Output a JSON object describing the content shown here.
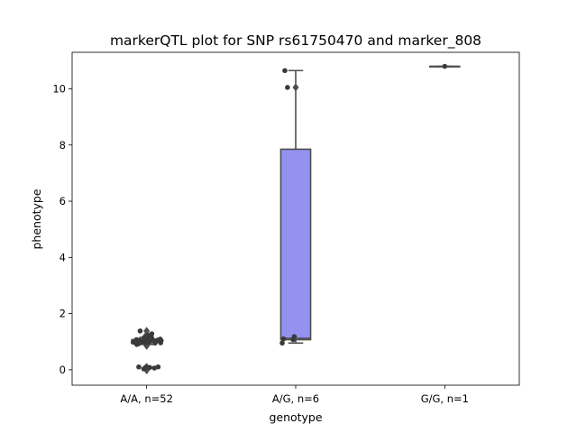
{
  "chart_data": {
    "type": "box",
    "title": "markerQTL plot for SNP rs61750470 and marker_808",
    "xlabel": "genotype",
    "ylabel": "phenotype",
    "categories": [
      "A/A, n=52",
      "A/G, n=6",
      "G/G, n=1"
    ],
    "ylim": [
      -0.55,
      11.3
    ],
    "yticks": [
      0,
      2,
      4,
      6,
      8,
      10
    ],
    "grid": false,
    "boxes": [
      {
        "category": "A/A, n=52",
        "q1": 0.97,
        "median": 1.02,
        "q3": 1.07,
        "whisker_low": 0.9,
        "whisker_high": 1.15,
        "fill": "#9392f1"
      },
      {
        "category": "A/G, n=6",
        "q1": 1.07,
        "median": 1.12,
        "q3": 7.85,
        "whisker_low": 0.95,
        "whisker_high": 10.65,
        "fill": "#9392f1"
      },
      {
        "category": "G/G, n=1",
        "q1": 10.8,
        "median": 10.8,
        "q3": 10.8,
        "whisker_low": 10.8,
        "whisker_high": 10.8,
        "fill": "#9392f1"
      }
    ],
    "outliers": [
      {
        "category": "A/A, n=52",
        "values": [
          1.38,
          1.25,
          1.22,
          0.85,
          0.1,
          0.06,
          0.03,
          0.0,
          -0.02
        ]
      },
      {
        "category": "A/G, n=6",
        "values": [
          10.05
        ]
      }
    ],
    "points": [
      {
        "category": "A/A, n=52",
        "values": [
          1.0,
          0.98,
          1.03,
          1.05,
          0.96,
          1.01,
          0.99,
          1.06,
          0.97,
          1.02,
          1.04,
          0.95,
          1.08,
          1.0,
          1.1,
          0.93,
          1.12,
          1.07,
          0.99,
          1.03,
          1.01,
          0.98,
          1.05,
          0.96,
          1.02,
          1.0,
          1.09,
          0.94,
          1.15,
          1.22,
          1.28,
          1.38,
          0.9,
          1.04,
          1.0,
          0.97,
          1.06,
          1.01,
          0.99,
          1.03,
          1.02,
          0.98,
          1.0,
          1.05,
          0.95,
          0.1,
          0.09,
          0.1,
          0.08,
          0.03,
          0.06,
          1.25
        ]
      },
      {
        "category": "A/G, n=6",
        "values": [
          10.65,
          10.05,
          1.18,
          1.1,
          0.95,
          1.07
        ]
      },
      {
        "category": "G/G, n=1",
        "values": [
          10.8
        ]
      }
    ],
    "colors": {
      "box_fill": "#9392f1",
      "box_edge": "#4d4d4d",
      "point": "#3a3a3a",
      "axes": "#000000"
    }
  }
}
